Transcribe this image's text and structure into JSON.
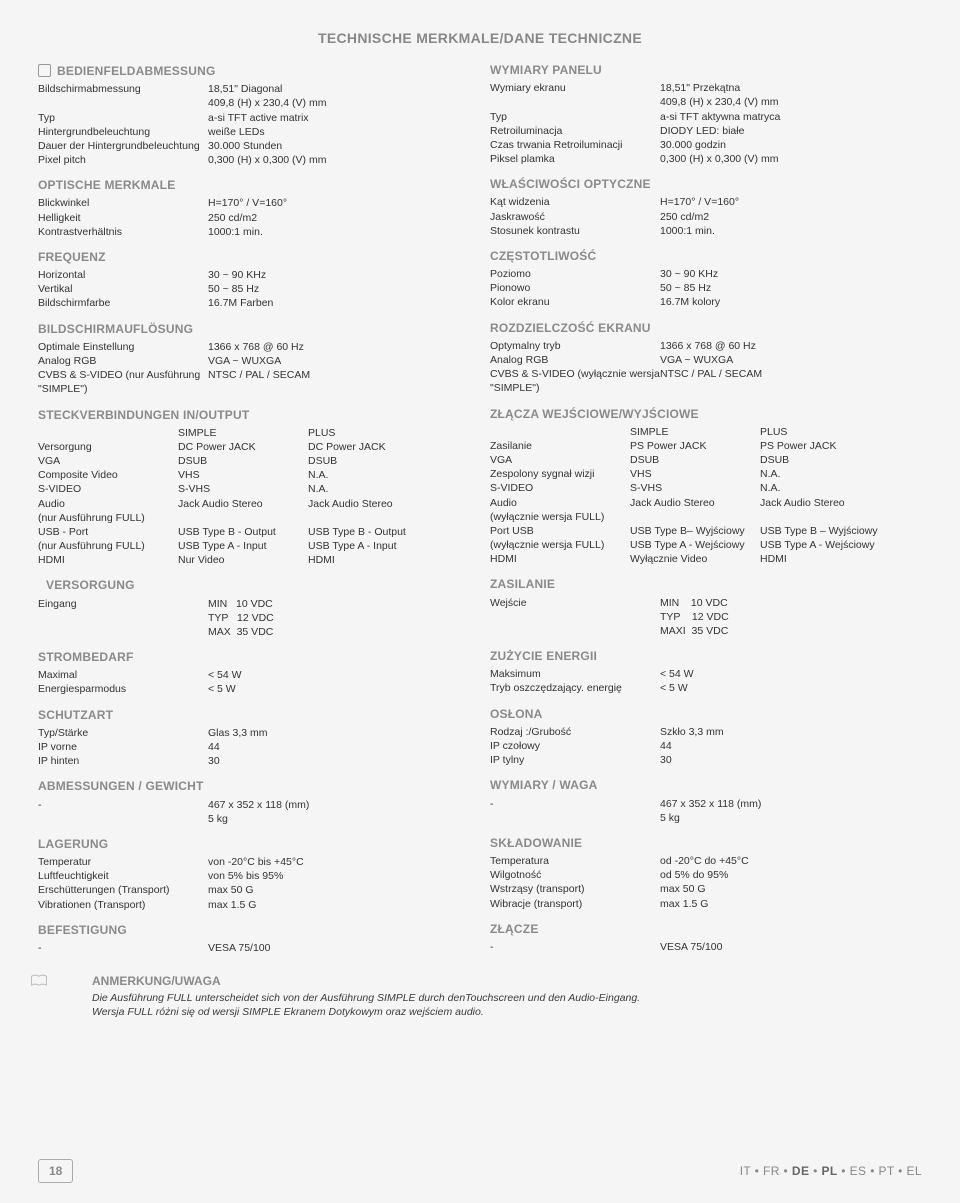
{
  "title": "TECHNISCHE MERKMALE/DANE TECHNICZNE",
  "left": {
    "s1_h": "BEDIENFELDABMESSUNG",
    "s1": [
      [
        "Bildschirmabmessung",
        "18,51\" Diagonal"
      ],
      [
        "",
        "409,8 (H) x 230,4 (V) mm"
      ],
      [
        "Typ",
        "a-si TFT active matrix"
      ],
      [
        "Hintergrundbeleuchtung",
        "weiße LEDs"
      ],
      [
        "Dauer der Hintergrundbeleuchtung",
        "30.000 Stunden"
      ],
      [
        "Pixel pitch",
        "0,300 (H) x 0,300 (V) mm"
      ]
    ],
    "s2_h": "OPTISCHE MERKMALE",
    "s2": [
      [
        "Blickwinkel",
        "H=170° / V=160°"
      ],
      [
        "Helligkeit",
        "250 cd/m2"
      ],
      [
        "Kontrastverhältnis",
        "1000:1 min."
      ]
    ],
    "s3_h": "FREQUENZ",
    "s3": [
      [
        "Horizontal",
        "30 ~ 90 KHz"
      ],
      [
        "Vertikal",
        "50 ~ 85 Hz"
      ],
      [
        "Bildschirmfarbe",
        "16.7M Farben"
      ]
    ],
    "s4_h": "BILDSCHIRMAUFLÖSUNG",
    "s4": [
      [
        "Optimale Einstellung",
        "1366 x 768 @ 60 Hz"
      ],
      [
        "Analog RGB",
        "VGA ~ WUXGA"
      ],
      [
        "CVBS & S-VIDEO (nur Ausführung",
        "NTSC / PAL / SECAM"
      ],
      [
        "\"SIMPLE\")",
        ""
      ]
    ],
    "s5_h": "STECKVERBINDUNGEN IN/OUTPUT",
    "s5": [
      [
        "",
        "SIMPLE",
        "PLUS"
      ],
      [
        "Versorgung",
        "DC Power JACK",
        "DC Power JACK"
      ],
      [
        "VGA",
        "DSUB",
        "DSUB"
      ],
      [
        "Composite Video",
        "VHS",
        "N.A."
      ],
      [
        "S-VIDEO",
        "S-VHS",
        "N.A."
      ],
      [
        "Audio",
        "Jack Audio Stereo",
        "Jack Audio Stereo"
      ],
      [
        "(nur Ausführung FULL)",
        "",
        ""
      ],
      [
        "USB - Port",
        "USB Type B - Output",
        "USB Type B - Output"
      ],
      [
        "(nur Ausführung FULL)",
        "USB Type A - Input",
        "USB Type A - Input"
      ],
      [
        "HDMI",
        "Nur Video",
        "HDMI"
      ]
    ],
    "s6_h": "VERSORGUNG",
    "s6": [
      [
        "Eingang",
        "MIN   10 VDC"
      ],
      [
        "",
        "TYP   12 VDC"
      ],
      [
        "",
        "MAX  35 VDC"
      ]
    ],
    "s7_h": "STROMBEDARF",
    "s7": [
      [
        "Maximal",
        "< 54 W"
      ],
      [
        "Energiesparmodus",
        "< 5 W"
      ]
    ],
    "s8_h": "SCHUTZART",
    "s8": [
      [
        "Typ/Stärke",
        "Glas 3,3 mm"
      ],
      [
        "IP vorne",
        "44"
      ],
      [
        "IP hinten",
        "30"
      ]
    ],
    "s9_h": "ABMESSUNGEN / GEWICHT",
    "s9": [
      [
        "-",
        "467 x 352 x 118 (mm)"
      ],
      [
        "",
        "5 kg"
      ]
    ],
    "s10_h": "LAGERUNG",
    "s10": [
      [
        "Temperatur",
        "von -20°C bis +45°C"
      ],
      [
        "Luftfeuchtigkeit",
        "von 5% bis 95%"
      ],
      [
        "Erschütterungen (Transport)",
        "max 50 G"
      ],
      [
        "Vibrationen (Transport)",
        "max 1.5 G"
      ]
    ],
    "s11_h": "BEFESTIGUNG",
    "s11": [
      [
        "-",
        "VESA 75/100"
      ]
    ]
  },
  "right": {
    "s1_h": "WYMIARY PANELU",
    "s1": [
      [
        "Wymiary ekranu",
        "18,51\" Przekątna"
      ],
      [
        "",
        "409,8 (H) x 230,4 (V) mm"
      ],
      [
        "Typ",
        "a-si TFT aktywna matryca"
      ],
      [
        "Retroiluminacja",
        "DIODY LED: białe"
      ],
      [
        "Czas trwania Retroiluminacji",
        "30.000 godzin"
      ],
      [
        "Piksel plamka",
        "0,300 (H) x 0,300 (V) mm"
      ]
    ],
    "s2_h": "WŁAŚCIWOŚCI OPTYCZNE",
    "s2": [
      [
        "Kąt widzenia",
        "H=170° / V=160°"
      ],
      [
        "Jaskrawość",
        "250 cd/m2"
      ],
      [
        "Stosunek kontrastu",
        "1000:1 min."
      ]
    ],
    "s3_h": "CZĘSTOTLIWOŚĆ",
    "s3": [
      [
        "Poziomo",
        "30 ~ 90 KHz"
      ],
      [
        "Pionowo",
        "50 ~ 85 Hz"
      ],
      [
        "Kolor ekranu",
        "16.7M kolory"
      ]
    ],
    "s4_h": "ROZDZIELCZOŚĆ EKRANU",
    "s4": [
      [
        "Optymalny tryb",
        "1366 x 768 @ 60 Hz"
      ],
      [
        "Analog RGB",
        "VGA ~ WUXGA"
      ],
      [
        "CVBS & S-VIDEO (wyłącznie wersja",
        "NTSC / PAL / SECAM"
      ],
      [
        "\"SIMPLE\")",
        ""
      ]
    ],
    "s5_h": "ZŁĄCZA WEJŚCIOWE/WYJŚCIOWE",
    "s5": [
      [
        "",
        "SIMPLE",
        "PLUS"
      ],
      [
        "Zasilanie",
        "PS Power JACK",
        "PS Power JACK"
      ],
      [
        "VGA",
        "DSUB",
        "DSUB"
      ],
      [
        "Zespolony sygnał wizji",
        "VHS",
        "N.A."
      ],
      [
        "S-VIDEO",
        "S-VHS",
        "N.A."
      ],
      [
        "Audio",
        "Jack Audio Stereo",
        "Jack Audio Stereo"
      ],
      [
        "(wyłącznie wersja FULL)",
        "",
        ""
      ],
      [
        "Port USB",
        "USB Type B– Wyjściowy",
        "USB Type B – Wyjściowy"
      ],
      [
        "(wyłącznie wersja FULL)",
        "USB Type A - Wejściowy",
        "USB Type A - Wejściowy"
      ],
      [
        "HDMI",
        "Wyłącznie Video",
        "HDMI"
      ]
    ],
    "s6_h": "ZASILANIE",
    "s6": [
      [
        "Wejście",
        "MIN    10 VDC"
      ],
      [
        "",
        "TYP    12 VDC"
      ],
      [
        "",
        "MAXI  35 VDC"
      ]
    ],
    "s7_h": "ZUŻYCIE ENERGII",
    "s7": [
      [
        "Maksimum",
        "< 54 W"
      ],
      [
        "Tryb oszczędzający. energię",
        "< 5 W"
      ]
    ],
    "s8_h": "OSŁONA",
    "s8": [
      [
        "Rodzaj :/Grubość",
        "Szkło 3,3 mm"
      ],
      [
        "IP czołowy",
        "44"
      ],
      [
        "IP tylny",
        "30"
      ]
    ],
    "s9_h": "WYMIARY / WAGA",
    "s9": [
      [
        "-",
        "467 x 352 x 118 (mm)"
      ],
      [
        "",
        "5 kg"
      ]
    ],
    "s10_h": "SKŁADOWANIE",
    "s10": [
      [
        "Temperatura",
        "od -20°C do +45°C"
      ],
      [
        "Wilgotność",
        "od 5% do 95%"
      ],
      [
        "Wstrząsy (transport)",
        "max 50 G"
      ],
      [
        "Wibracje (transport)",
        "max 1.5 G"
      ]
    ],
    "s11_h": "ZŁĄCZE",
    "s11": [
      [
        "-",
        "VESA 75/100"
      ]
    ]
  },
  "note_h": "ANMERKUNG/UWAGA",
  "note_l1": "Die Ausführung FULL unterscheidet sich von der Ausführung SIMPLE durch denTouchscreen und den Audio-Eingang.",
  "note_l2": "Wersja FULL różni się od wersji SIMPLE  Ekranem Dotykowym oraz wejściem audio.",
  "page_no": "18",
  "langs_html": "IT • FR • <b>DE</b> • <b>PL</b> • ES • PT • EL"
}
